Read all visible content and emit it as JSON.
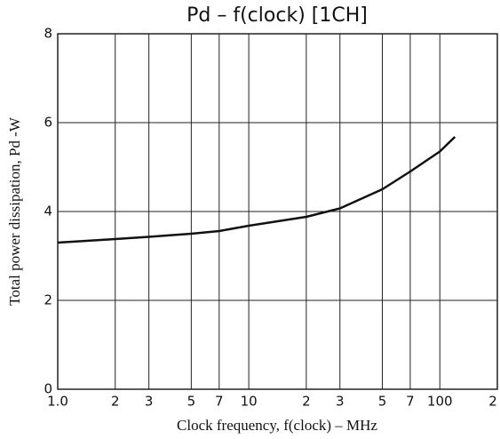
{
  "chart_data": {
    "type": "line",
    "title": "Pd  –  f(clock)  [1CH]",
    "xlabel": "Clock frequency, f(clock) – MHz",
    "ylabel": "Total power dissipation, Pd -W",
    "xscale": "log",
    "xlim": [
      1,
      200
    ],
    "ylim": [
      0,
      8
    ],
    "xticks": [
      {
        "value": 1,
        "label": "1.0"
      },
      2,
      3,
      5,
      7,
      10,
      {
        "value": 20,
        "label": "2"
      },
      {
        "value": 30,
        "label": "3"
      },
      {
        "value": 50,
        "label": "5"
      },
      {
        "value": 70,
        "label": "7"
      },
      100,
      {
        "value": 200,
        "label": "2"
      }
    ],
    "yticks": [
      0,
      2,
      4,
      6,
      8
    ],
    "grid": true,
    "series": [
      {
        "color": "#111111",
        "x": [
          1,
          2,
          3,
          5,
          7,
          10,
          20,
          30,
          50,
          70,
          100,
          120
        ],
        "values": [
          3.3,
          3.38,
          3.43,
          3.5,
          3.56,
          3.68,
          3.88,
          4.07,
          4.5,
          4.9,
          5.35,
          5.68
        ]
      }
    ]
  }
}
